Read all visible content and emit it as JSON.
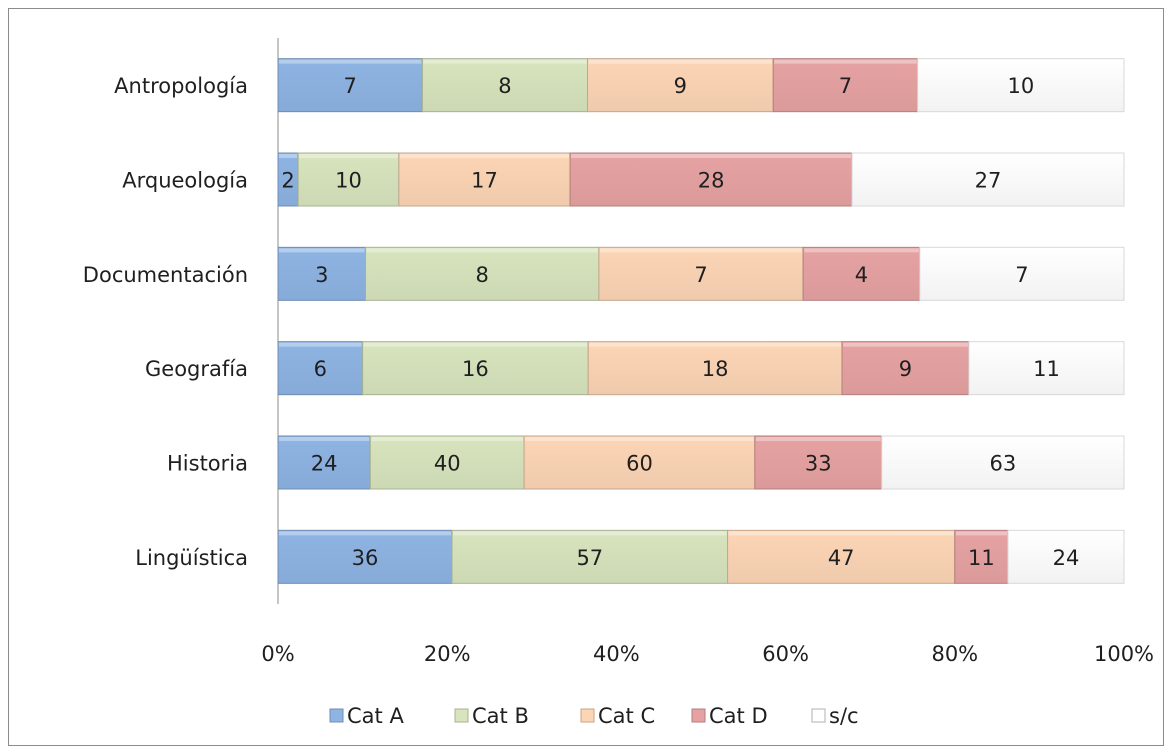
{
  "chart_data": {
    "type": "bar",
    "orientation": "horizontal",
    "stacked": "percent",
    "categories": [
      "Antropología",
      "Arqueología",
      "Documentación",
      "Geografía",
      "Historia",
      "Lingüística"
    ],
    "series": [
      {
        "name": "Cat A",
        "values": [
          7,
          2,
          3,
          6,
          24,
          36
        ],
        "color": "#8eb4e3"
      },
      {
        "name": "Cat B",
        "values": [
          8,
          10,
          8,
          16,
          40,
          57
        ],
        "color": "#d7e4bd"
      },
      {
        "name": "Cat C",
        "values": [
          9,
          17,
          7,
          18,
          60,
          47
        ],
        "color": "#fcd5b5"
      },
      {
        "name": "Cat D",
        "values": [
          7,
          28,
          4,
          9,
          33,
          11
        ],
        "color": "#e6a2a2"
      },
      {
        "name": "s/c",
        "values": [
          10,
          27,
          7,
          11,
          63,
          24
        ],
        "color": "#ffffff"
      }
    ],
    "xlim": [
      0,
      100
    ],
    "x_ticks": [
      "0%",
      "20%",
      "40%",
      "60%",
      "80%",
      "100%"
    ],
    "grid": false,
    "legend_position": "bottom",
    "title": "",
    "xlabel": "",
    "ylabel": ""
  }
}
